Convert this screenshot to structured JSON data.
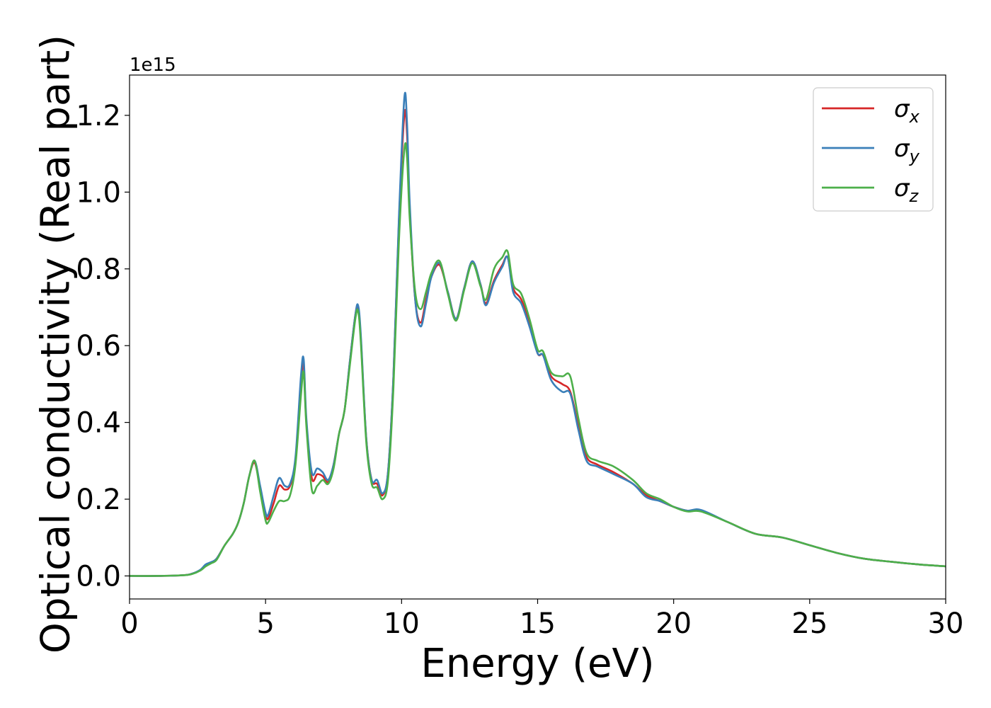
{
  "chart_data": {
    "type": "line",
    "title": "",
    "xlabel": "Energy (eV)",
    "ylabel": "Optical conductivity (Real part)",
    "y_offset_label": "1e15",
    "xlim": [
      0,
      30
    ],
    "ylim": [
      -0.06,
      1.305
    ],
    "x_ticks": [
      0,
      5,
      10,
      15,
      20,
      25,
      30
    ],
    "x_tick_labels": [
      "0",
      "5",
      "10",
      "15",
      "20",
      "25",
      "30"
    ],
    "y_ticks": [
      0.0,
      0.2,
      0.4,
      0.6,
      0.8,
      1.0,
      1.2
    ],
    "y_tick_labels": [
      "0.0",
      "0.2",
      "0.4",
      "0.6",
      "0.8",
      "1.0",
      "1.2"
    ],
    "grid": false,
    "legend_position": "top-right",
    "series": [
      {
        "name": "σx",
        "symbol": "σ",
        "subscript": "x",
        "color": "#d62728",
        "x": [
          0,
          1,
          2,
          2.3,
          2.6,
          2.8,
          3.0,
          3.2,
          3.5,
          3.8,
          4.0,
          4.2,
          4.4,
          4.6,
          4.8,
          5.0,
          5.1,
          5.3,
          5.5,
          5.7,
          5.9,
          6.1,
          6.3,
          6.4,
          6.5,
          6.7,
          6.9,
          7.1,
          7.3,
          7.5,
          7.7,
          7.9,
          8.1,
          8.3,
          8.4,
          8.5,
          8.7,
          8.9,
          9.1,
          9.3,
          9.5,
          9.7,
          9.9,
          10.1,
          10.2,
          10.3,
          10.5,
          10.7,
          10.9,
          11.1,
          11.4,
          11.7,
          12.0,
          12.3,
          12.6,
          12.9,
          13.1,
          13.4,
          13.7,
          13.9,
          14.1,
          14.4,
          14.7,
          15.0,
          15.2,
          15.5,
          15.9,
          16.2,
          16.5,
          16.8,
          17.2,
          17.8,
          18.5,
          19.0,
          19.5,
          20.0,
          20.5,
          21.0,
          22.0,
          23.0,
          24.0,
          25.0,
          26.0,
          27.0,
          28.0,
          29.0,
          30.0
        ],
        "y": [
          0.0,
          0.0,
          0.002,
          0.006,
          0.015,
          0.028,
          0.035,
          0.045,
          0.08,
          0.11,
          0.14,
          0.19,
          0.26,
          0.295,
          0.23,
          0.16,
          0.15,
          0.19,
          0.235,
          0.225,
          0.235,
          0.3,
          0.5,
          0.55,
          0.4,
          0.255,
          0.265,
          0.26,
          0.245,
          0.29,
          0.37,
          0.43,
          0.56,
          0.68,
          0.7,
          0.62,
          0.36,
          0.25,
          0.24,
          0.21,
          0.27,
          0.52,
          0.92,
          1.2,
          1.15,
          0.95,
          0.72,
          0.66,
          0.72,
          0.78,
          0.81,
          0.74,
          0.67,
          0.75,
          0.82,
          0.76,
          0.71,
          0.77,
          0.81,
          0.83,
          0.75,
          0.72,
          0.66,
          0.58,
          0.575,
          0.52,
          0.5,
          0.48,
          0.39,
          0.31,
          0.29,
          0.27,
          0.24,
          0.21,
          0.195,
          0.18,
          0.17,
          0.17,
          0.14,
          0.11,
          0.1,
          0.08,
          0.06,
          0.045,
          0.037,
          0.03,
          0.025
        ]
      },
      {
        "name": "σy",
        "symbol": "σ",
        "subscript": "y",
        "color": "#3a7fb9",
        "x": [
          0,
          1,
          2,
          2.3,
          2.6,
          2.8,
          3.0,
          3.2,
          3.5,
          3.8,
          4.0,
          4.2,
          4.4,
          4.6,
          4.8,
          5.0,
          5.1,
          5.3,
          5.5,
          5.7,
          5.9,
          6.1,
          6.3,
          6.4,
          6.5,
          6.7,
          6.9,
          7.1,
          7.3,
          7.5,
          7.7,
          7.9,
          8.1,
          8.3,
          8.4,
          8.5,
          8.7,
          8.9,
          9.1,
          9.3,
          9.5,
          9.7,
          9.9,
          10.1,
          10.2,
          10.3,
          10.5,
          10.7,
          10.9,
          11.1,
          11.4,
          11.7,
          12.0,
          12.3,
          12.6,
          12.9,
          13.1,
          13.4,
          13.7,
          13.9,
          14.1,
          14.4,
          14.7,
          15.0,
          15.2,
          15.5,
          15.9,
          16.2,
          16.5,
          16.8,
          17.2,
          17.8,
          18.5,
          19.0,
          19.5,
          20.0,
          20.5,
          21.0,
          22.0,
          23.0,
          24.0,
          25.0,
          26.0,
          27.0,
          28.0,
          29.0,
          30.0
        ],
        "y": [
          0.0,
          0.0,
          0.002,
          0.006,
          0.016,
          0.03,
          0.036,
          0.045,
          0.08,
          0.11,
          0.14,
          0.19,
          0.26,
          0.3,
          0.235,
          0.165,
          0.16,
          0.21,
          0.255,
          0.235,
          0.24,
          0.31,
          0.52,
          0.565,
          0.41,
          0.27,
          0.28,
          0.27,
          0.25,
          0.29,
          0.37,
          0.43,
          0.56,
          0.68,
          0.705,
          0.63,
          0.36,
          0.25,
          0.25,
          0.215,
          0.27,
          0.52,
          0.93,
          1.245,
          1.18,
          0.97,
          0.72,
          0.65,
          0.71,
          0.78,
          0.815,
          0.74,
          0.67,
          0.75,
          0.82,
          0.76,
          0.705,
          0.765,
          0.805,
          0.83,
          0.74,
          0.71,
          0.65,
          0.58,
          0.575,
          0.51,
          0.48,
          0.475,
          0.38,
          0.3,
          0.285,
          0.265,
          0.24,
          0.205,
          0.195,
          0.18,
          0.17,
          0.172,
          0.14,
          0.11,
          0.1,
          0.08,
          0.06,
          0.045,
          0.037,
          0.03,
          0.025
        ]
      },
      {
        "name": "σz",
        "symbol": "σ",
        "subscript": "z",
        "color": "#4daf4a",
        "x": [
          0,
          1,
          2,
          2.3,
          2.6,
          2.8,
          3.0,
          3.2,
          3.5,
          3.8,
          4.0,
          4.2,
          4.4,
          4.6,
          4.8,
          5.0,
          5.1,
          5.3,
          5.5,
          5.7,
          5.9,
          6.1,
          6.3,
          6.4,
          6.5,
          6.7,
          6.9,
          7.1,
          7.3,
          7.5,
          7.7,
          7.9,
          8.1,
          8.3,
          8.4,
          8.5,
          8.7,
          8.9,
          9.1,
          9.3,
          9.5,
          9.7,
          9.9,
          10.1,
          10.2,
          10.3,
          10.5,
          10.7,
          10.9,
          11.1,
          11.4,
          11.7,
          12.0,
          12.3,
          12.6,
          12.9,
          13.1,
          13.4,
          13.7,
          13.9,
          14.1,
          14.4,
          14.7,
          15.0,
          15.2,
          15.5,
          15.9,
          16.2,
          16.5,
          16.8,
          17.2,
          17.8,
          18.5,
          19.0,
          19.5,
          20.0,
          20.5,
          21.0,
          22.0,
          23.0,
          24.0,
          25.0,
          26.0,
          27.0,
          28.0,
          29.0,
          30.0
        ],
        "y": [
          0.0,
          0.0,
          0.002,
          0.005,
          0.014,
          0.025,
          0.033,
          0.042,
          0.08,
          0.11,
          0.14,
          0.19,
          0.26,
          0.3,
          0.22,
          0.145,
          0.14,
          0.17,
          0.195,
          0.195,
          0.21,
          0.29,
          0.47,
          0.53,
          0.39,
          0.225,
          0.235,
          0.25,
          0.24,
          0.28,
          0.37,
          0.43,
          0.55,
          0.67,
          0.69,
          0.61,
          0.35,
          0.24,
          0.23,
          0.2,
          0.25,
          0.49,
          0.87,
          1.11,
          1.09,
          0.93,
          0.74,
          0.695,
          0.74,
          0.79,
          0.82,
          0.735,
          0.665,
          0.745,
          0.815,
          0.755,
          0.72,
          0.8,
          0.83,
          0.845,
          0.76,
          0.735,
          0.67,
          0.59,
          0.585,
          0.53,
          0.52,
          0.52,
          0.41,
          0.32,
          0.3,
          0.285,
          0.25,
          0.215,
          0.2,
          0.18,
          0.168,
          0.168,
          0.14,
          0.11,
          0.1,
          0.08,
          0.06,
          0.045,
          0.037,
          0.03,
          0.025
        ]
      }
    ]
  }
}
